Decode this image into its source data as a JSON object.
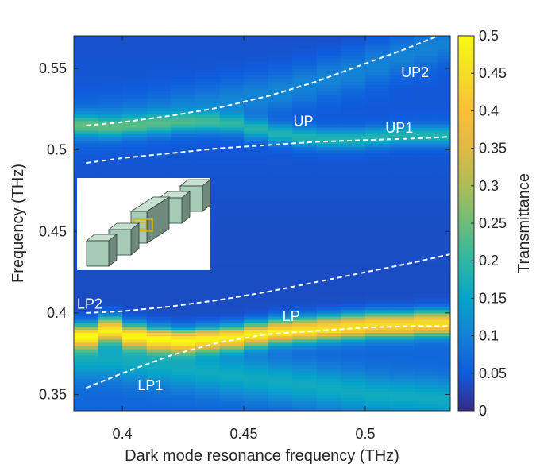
{
  "chart_data": {
    "type": "heatmap",
    "title": "",
    "xlabel": "Dark mode resonance frequency (THz)",
    "ylabel": "Frequency (THz)",
    "colorbar_label": "Transmittance",
    "xlim": [
      0.38,
      0.535
    ],
    "ylim": [
      0.34,
      0.57
    ],
    "x_ticks": [
      0.4,
      0.45,
      0.5
    ],
    "x_tick_labels": [
      "0.4",
      "0.45",
      "0.5"
    ],
    "y_ticks": [
      0.35,
      0.4,
      0.45,
      0.5,
      0.55
    ],
    "y_tick_labels": [
      "0.35",
      "0.4",
      "0.45",
      "0.5",
      "0.55"
    ],
    "colorbar_ticks": [
      0,
      0.05,
      0.1,
      0.15,
      0.2,
      0.25,
      0.3,
      0.35,
      0.4,
      0.45,
      0.5
    ],
    "colorbar_tick_labels": [
      "0",
      "0.05",
      "0.1",
      "0.15",
      "0.2",
      "0.25",
      "0.3",
      "0.35",
      "0.4",
      "0.45",
      "0.5"
    ],
    "clim": [
      0,
      0.5
    ],
    "x_columns": [
      0.385,
      0.395,
      0.405,
      0.415,
      0.425,
      0.435,
      0.445,
      0.455,
      0.465,
      0.475,
      0.485,
      0.495,
      0.505,
      0.515,
      0.525,
      0.535
    ],
    "bands": {
      "LP": {
        "y": [
          0.386,
          0.39,
          0.386,
          0.384,
          0.383,
          0.384,
          0.385,
          0.387,
          0.389,
          0.39,
          0.391,
          0.392,
          0.393,
          0.393,
          0.394,
          0.394
        ],
        "peak": 0.42,
        "width": 0.007
      },
      "LP_lower": {
        "y": [
          0.372,
          0.372,
          0.37,
          0.368,
          0.366,
          0.364,
          0.362,
          0.36,
          0.358,
          0.356,
          0.354,
          0.352,
          0.35,
          0.349,
          0.348,
          0.347
        ],
        "peak": 0.1,
        "width": 0.012
      },
      "UP": {
        "y": [
          0.515,
          0.514,
          0.515,
          0.516,
          0.517,
          0.517,
          0.516,
          0.513,
          0.51,
          0.508,
          0.507,
          0.507,
          0.508,
          0.509,
          0.509,
          0.509
        ],
        "peak": 0.14,
        "width": 0.006
      },
      "UP_upper": {
        "y": [
          0.517,
          0.518,
          0.52,
          0.522,
          0.525,
          0.527,
          0.53,
          0.533,
          0.536,
          0.54,
          0.544,
          0.548,
          0.553,
          0.558,
          0.562,
          0.566
        ],
        "peak": 0.06,
        "width": 0.012
      }
    },
    "series": [
      {
        "name": "UP2",
        "x": [
          0.385,
          0.4,
          0.42,
          0.44,
          0.46,
          0.48,
          0.5,
          0.515,
          0.53
        ],
        "y": [
          0.515,
          0.517,
          0.521,
          0.526,
          0.533,
          0.542,
          0.553,
          0.561,
          0.57
        ]
      },
      {
        "name": "UP1",
        "x": [
          0.385,
          0.4,
          0.42,
          0.44,
          0.46,
          0.48,
          0.5,
          0.52,
          0.535
        ],
        "y": [
          0.492,
          0.495,
          0.498,
          0.501,
          0.503,
          0.505,
          0.506,
          0.507,
          0.508
        ]
      },
      {
        "name": "LP2",
        "x": [
          0.385,
          0.4,
          0.42,
          0.44,
          0.46,
          0.48,
          0.5,
          0.52,
          0.535
        ],
        "y": [
          0.4,
          0.401,
          0.404,
          0.408,
          0.413,
          0.419,
          0.425,
          0.431,
          0.436
        ]
      },
      {
        "name": "LP1",
        "x": [
          0.385,
          0.4,
          0.42,
          0.44,
          0.46,
          0.48,
          0.5,
          0.52,
          0.535
        ],
        "y": [
          0.354,
          0.363,
          0.374,
          0.382,
          0.387,
          0.389,
          0.391,
          0.392,
          0.392
        ]
      }
    ],
    "annotations": [
      {
        "text": "UP2",
        "x": 0.5205,
        "y": 0.5475
      },
      {
        "text": "UP",
        "x": 0.4745,
        "y": 0.5175
      },
      {
        "text": "UP1",
        "x": 0.514,
        "y": 0.5135
      },
      {
        "text": "LP2",
        "x": 0.3865,
        "y": 0.4055
      },
      {
        "text": "LP",
        "x": 0.4695,
        "y": 0.398
      },
      {
        "text": "LP1",
        "x": 0.4115,
        "y": 0.3555
      }
    ]
  }
}
